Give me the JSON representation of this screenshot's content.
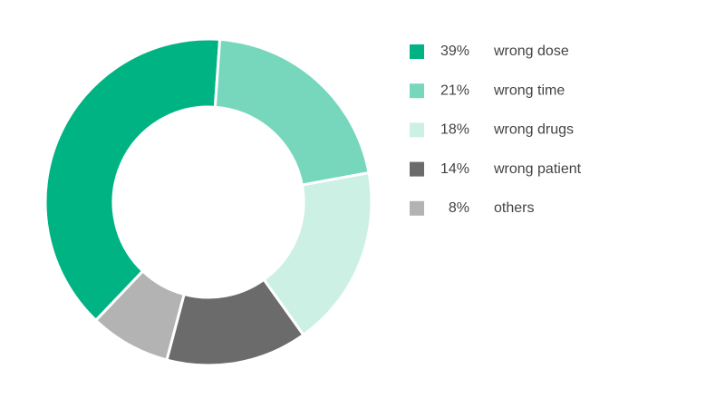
{
  "chart_data": {
    "type": "donut",
    "categories": [
      "wrong dose",
      "wrong time",
      "wrong drugs",
      "wrong patient",
      "others"
    ],
    "values": [
      39,
      21,
      18,
      14,
      8
    ],
    "value_labels": [
      "39%",
      "21%",
      "18%",
      "14%",
      "8%"
    ],
    "colors": [
      "#00b383",
      "#76d7bc",
      "#cdf0e5",
      "#6b6b6b",
      "#b3b3b3"
    ],
    "legend": "right"
  }
}
